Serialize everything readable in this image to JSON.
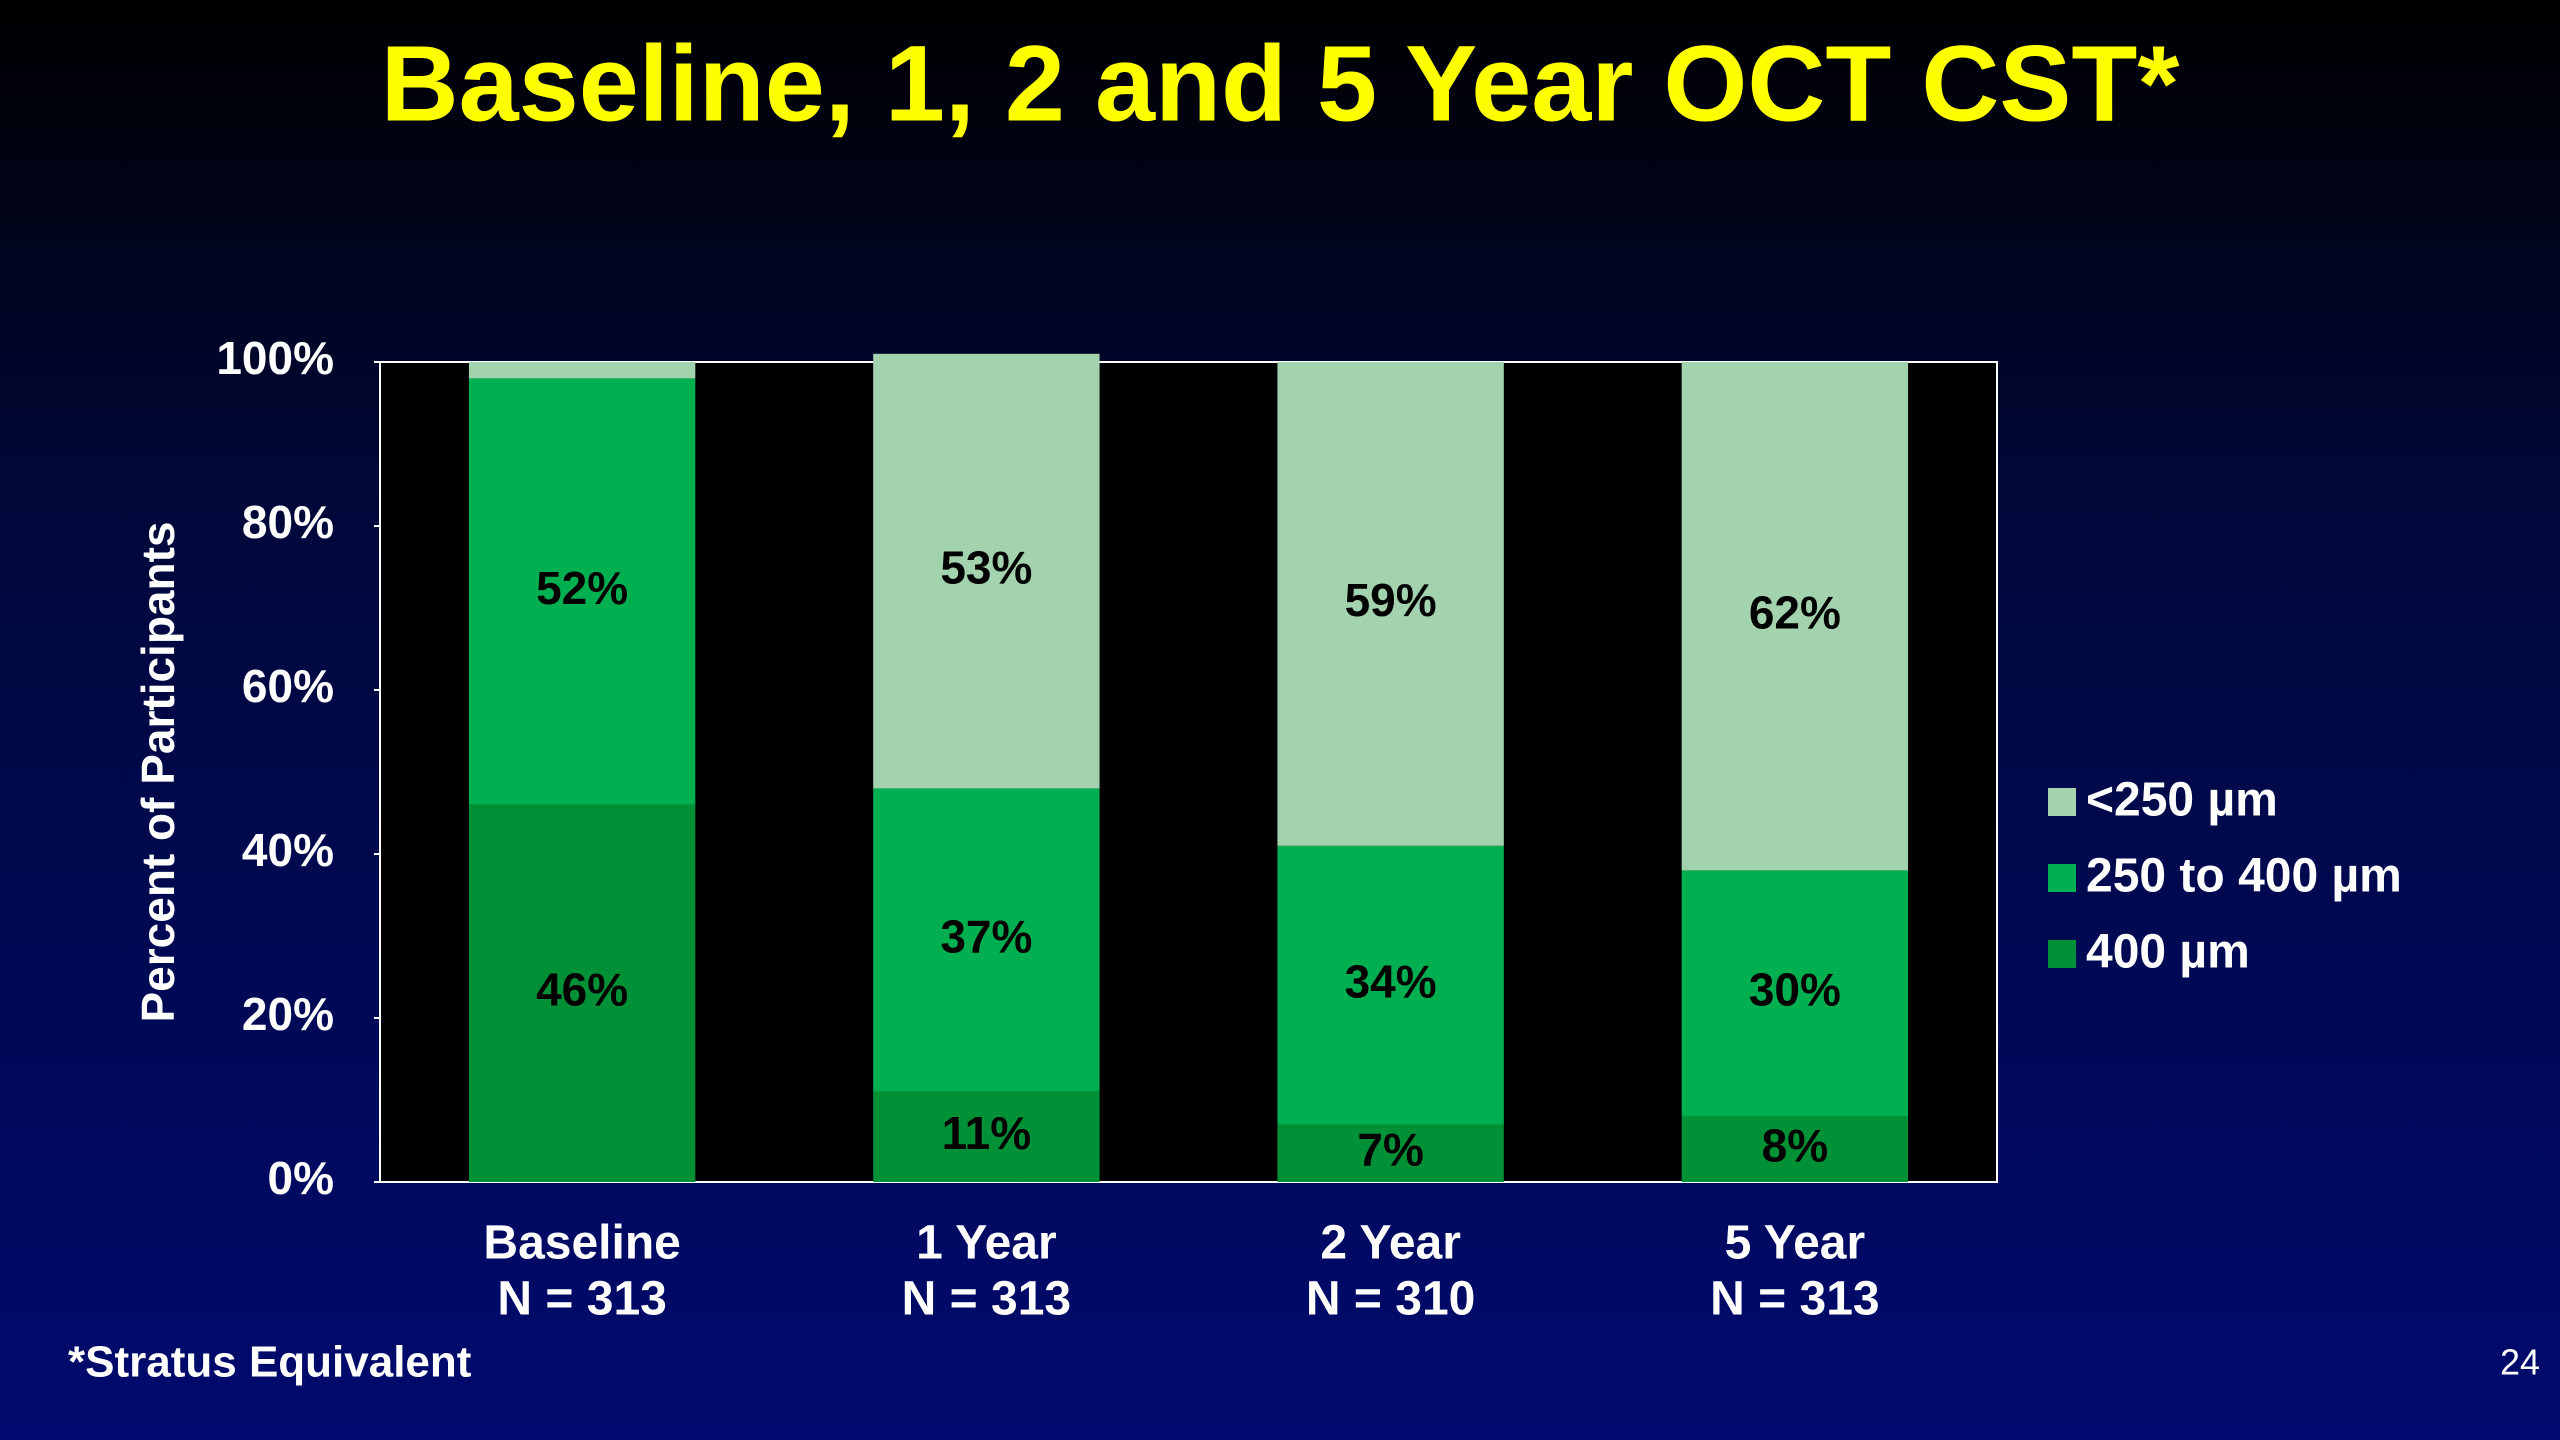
{
  "chart_data": {
    "type": "stacked_bar",
    "title": "Baseline, 1, 2 and 5 Year OCT CST*",
    "y_label": "Percent of Participants",
    "categories": [
      "Baseline",
      "1 Year",
      "2 Year",
      "5 Year"
    ],
    "category_sublabels": [
      "N = 313",
      "N = 313",
      "N = 310",
      "N = 313"
    ],
    "series": [
      {
        "name": "400 µm",
        "color": "#009036",
        "values": [
          46,
          11,
          7,
          8
        ],
        "value_labels": [
          "46%",
          "11%",
          "7%",
          "8%"
        ]
      },
      {
        "name": "250 to 400 µm",
        "color": "#00b050",
        "values": [
          52,
          37,
          34,
          30
        ],
        "value_labels": [
          "52%",
          "37%",
          "34%",
          "30%"
        ]
      },
      {
        "name": "<250 µm",
        "color": "#a3d3ae",
        "values": [
          2,
          53,
          59,
          62
        ],
        "value_labels": [
          null,
          "53%",
          "59%",
          "62%"
        ]
      }
    ],
    "ylim": [
      0,
      100
    ],
    "yticks": [
      {
        "value": 0,
        "label": "0%"
      },
      {
        "value": 20,
        "label": "20%"
      },
      {
        "value": 40,
        "label": "40%"
      },
      {
        "value": 60,
        "label": "60%"
      },
      {
        "value": 80,
        "label": "80%"
      },
      {
        "value": 100,
        "label": "100%"
      }
    ],
    "footnote": "*Stratus Equivalent",
    "page_number": "24"
  }
}
